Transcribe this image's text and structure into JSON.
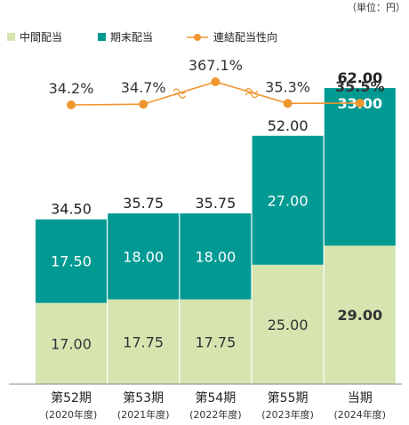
{
  "chart_data": {
    "type": "bar",
    "stacked": true,
    "unit_note": "（単位：円）",
    "categories": [
      {
        "label": "第52期",
        "sub": "(2020年度)"
      },
      {
        "label": "第53期",
        "sub": "(2021年度)"
      },
      {
        "label": "第54期",
        "sub": "(2022年度)"
      },
      {
        "label": "第55期",
        "sub": "(2023年度)"
      },
      {
        "label": "当期",
        "sub": "(2024年度)"
      }
    ],
    "series": [
      {
        "name": "中間配当",
        "values": [
          17.0,
          17.75,
          17.75,
          25.0,
          29.0
        ],
        "labels": [
          "17.00",
          "17.75",
          "17.75",
          "25.00",
          "29.00"
        ],
        "color": "#d6e4b0"
      },
      {
        "name": "期末配当",
        "values": [
          17.5,
          18.0,
          18.0,
          27.0,
          33.0
        ],
        "labels": [
          "17.50",
          "18.00",
          "18.00",
          "27.00",
          "33.00"
        ],
        "color": "#009a93"
      }
    ],
    "totals": [
      "34.50",
      "35.75",
      "35.75",
      "52.00",
      "62.00"
    ],
    "line_series": {
      "name": "連結配当性向",
      "values": [
        34.2,
        34.7,
        367.1,
        35.3,
        35.5
      ],
      "labels": [
        "34.2%",
        "34.7%",
        "367.1%",
        "35.3%",
        "35.5%"
      ],
      "color": "#f0962f",
      "axis_break": true
    },
    "ylim": [
      0,
      65
    ],
    "highlight_color": "#f0962f",
    "highlight_total_color": "#009a93"
  }
}
